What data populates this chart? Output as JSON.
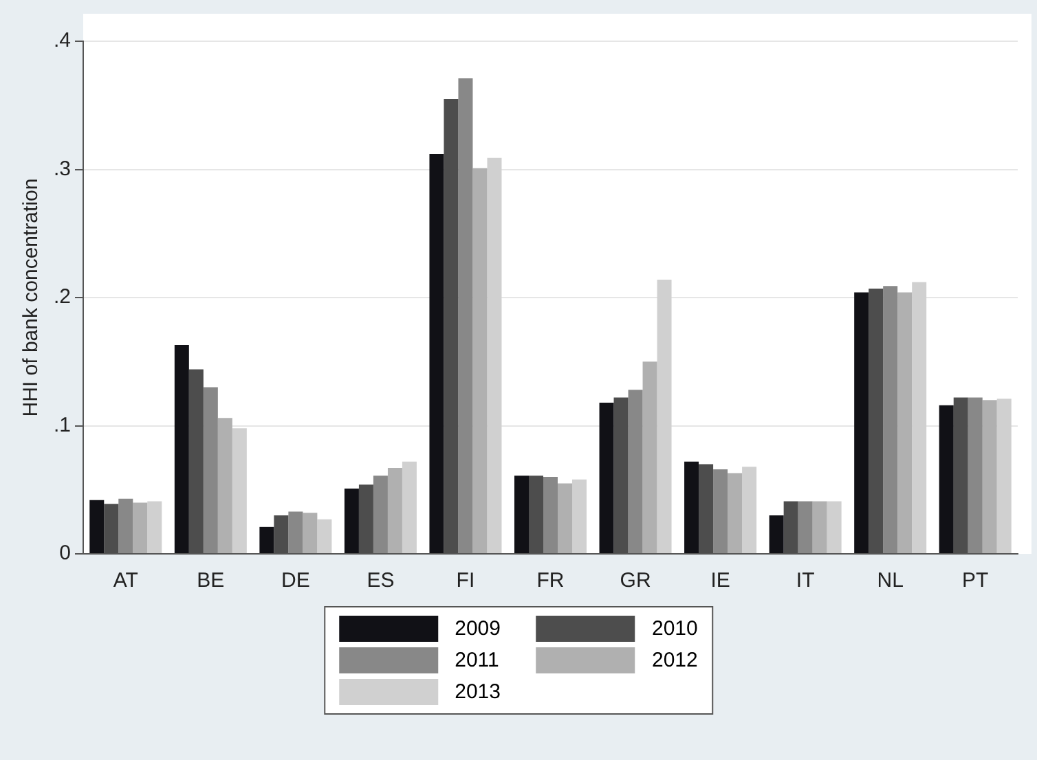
{
  "chart_data": {
    "type": "bar",
    "ylabel": "HHI of bank concentration",
    "categories": [
      "AT",
      "BE",
      "DE",
      "ES",
      "FI",
      "FR",
      "GR",
      "IE",
      "IT",
      "NL",
      "PT"
    ],
    "series": [
      {
        "name": "2009",
        "color": "#111116",
        "values": [
          0.042,
          0.163,
          0.021,
          0.051,
          0.312,
          0.061,
          0.118,
          0.072,
          0.03,
          0.204,
          0.116
        ]
      },
      {
        "name": "2010",
        "color": "#4d4d4d",
        "values": [
          0.039,
          0.144,
          0.03,
          0.054,
          0.355,
          0.061,
          0.122,
          0.07,
          0.041,
          0.207,
          0.122
        ]
      },
      {
        "name": "2011",
        "color": "#888888",
        "values": [
          0.043,
          0.13,
          0.033,
          0.061,
          0.371,
          0.06,
          0.128,
          0.066,
          0.041,
          0.209,
          0.122
        ]
      },
      {
        "name": "2012",
        "color": "#b0b0b0",
        "values": [
          0.04,
          0.106,
          0.032,
          0.067,
          0.301,
          0.055,
          0.15,
          0.063,
          0.041,
          0.204,
          0.12
        ]
      },
      {
        "name": "2013",
        "color": "#d0d0d0",
        "values": [
          0.041,
          0.098,
          0.027,
          0.072,
          0.309,
          0.058,
          0.214,
          0.068,
          0.041,
          0.212,
          0.121
        ]
      }
    ],
    "ylim": [
      0,
      0.4
    ],
    "yticks": [
      0,
      {
        "value": 0.1,
        "label": ".1"
      },
      {
        "value": 0.2,
        "label": ".2"
      },
      {
        "value": 0.3,
        "label": ".3"
      },
      {
        "value": 0.4,
        "label": ".4"
      }
    ],
    "grid": "y",
    "legend": "bottom"
  }
}
